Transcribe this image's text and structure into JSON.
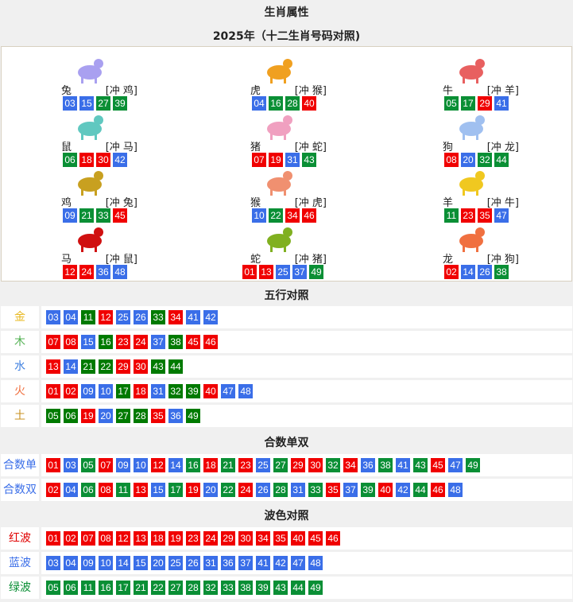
{
  "title": "生肖属性",
  "subtitle": "2025年（十二生肖号码对照)",
  "colors": {
    "red": "#f00000",
    "blue": "#3a6ee8",
    "green": "#0a8f35",
    "green_dark": "#007a00"
  },
  "waves": {
    "red": [
      "01",
      "02",
      "07",
      "08",
      "12",
      "13",
      "18",
      "19",
      "23",
      "24",
      "29",
      "30",
      "34",
      "35",
      "40",
      "45",
      "46"
    ],
    "blue": [
      "03",
      "04",
      "09",
      "10",
      "14",
      "15",
      "20",
      "25",
      "26",
      "31",
      "36",
      "37",
      "41",
      "42",
      "47",
      "48"
    ],
    "green": [
      "05",
      "06",
      "11",
      "16",
      "17",
      "21",
      "22",
      "27",
      "28",
      "32",
      "33",
      "38",
      "39",
      "43",
      "44",
      "49"
    ]
  },
  "zodiac": [
    {
      "name": "兔",
      "clash": "[冲 鸡]",
      "icon": "rabbit-icon",
      "color": "#a9a0f0",
      "nums": [
        "03",
        "15",
        "27",
        "39"
      ]
    },
    {
      "name": "虎",
      "clash": "[冲 猴]",
      "icon": "tiger-icon",
      "color": "#f0a020",
      "nums": [
        "04",
        "16",
        "28",
        "40"
      ]
    },
    {
      "name": "牛",
      "clash": "[冲 羊]",
      "icon": "ox-icon",
      "color": "#e86060",
      "nums": [
        "05",
        "17",
        "29",
        "41"
      ]
    },
    {
      "name": "鼠",
      "clash": "[冲 马]",
      "icon": "rat-icon",
      "color": "#60c8c0",
      "nums": [
        "06",
        "18",
        "30",
        "42"
      ]
    },
    {
      "name": "猪",
      "clash": "[冲 蛇]",
      "icon": "pig-icon",
      "color": "#f0a0c0",
      "nums": [
        "07",
        "19",
        "31",
        "43"
      ]
    },
    {
      "name": "狗",
      "clash": "[冲 龙]",
      "icon": "dog-icon",
      "color": "#a0c0f0",
      "nums": [
        "08",
        "20",
        "32",
        "44"
      ]
    },
    {
      "name": "鸡",
      "clash": "[冲 兔]",
      "icon": "rooster-icon",
      "color": "#c8a020",
      "nums": [
        "09",
        "21",
        "33",
        "45"
      ]
    },
    {
      "name": "猴",
      "clash": "[冲 虎]",
      "icon": "monkey-icon",
      "color": "#f09070",
      "nums": [
        "10",
        "22",
        "34",
        "46"
      ]
    },
    {
      "name": "羊",
      "clash": "[冲 牛]",
      "icon": "goat-icon",
      "color": "#f0c820",
      "nums": [
        "11",
        "23",
        "35",
        "47"
      ]
    },
    {
      "name": "马",
      "clash": "[冲 鼠]",
      "icon": "horse-icon",
      "color": "#d01010",
      "nums": [
        "12",
        "24",
        "36",
        "48"
      ]
    },
    {
      "name": "蛇",
      "clash": "[冲 猪]",
      "icon": "snake-icon",
      "color": "#80b020",
      "nums": [
        "01",
        "13",
        "25",
        "37",
        "49"
      ]
    },
    {
      "name": "龙",
      "clash": "[冲 狗]",
      "icon": "dragon-icon",
      "color": "#f07040",
      "nums": [
        "02",
        "14",
        "26",
        "38"
      ]
    }
  ],
  "wuxing": {
    "title": "五行对照",
    "rows": [
      {
        "label": "金",
        "color": "#e8b820",
        "nums": [
          "03",
          "04",
          "11",
          "12",
          "25",
          "26",
          "33",
          "34",
          "41",
          "42"
        ]
      },
      {
        "label": "木",
        "color": "#50b050",
        "nums": [
          "07",
          "08",
          "15",
          "16",
          "23",
          "24",
          "37",
          "38",
          "45",
          "46"
        ]
      },
      {
        "label": "水",
        "color": "#4080e0",
        "nums": [
          "13",
          "14",
          "21",
          "22",
          "29",
          "30",
          "43",
          "44"
        ]
      },
      {
        "label": "火",
        "color": "#f07040",
        "nums": [
          "01",
          "02",
          "09",
          "10",
          "17",
          "18",
          "31",
          "32",
          "39",
          "40",
          "47",
          "48"
        ]
      },
      {
        "label": "土",
        "color": "#c89020",
        "nums": [
          "05",
          "06",
          "19",
          "20",
          "27",
          "28",
          "35",
          "36",
          "49"
        ]
      }
    ]
  },
  "heshu": {
    "title": "合数单双",
    "rows": [
      {
        "label": "合数单",
        "color": "#3a6ee8",
        "nums": [
          "01",
          "03",
          "05",
          "07",
          "09",
          "10",
          "12",
          "14",
          "16",
          "18",
          "21",
          "23",
          "25",
          "27",
          "29",
          "30",
          "32",
          "34",
          "36",
          "38",
          "41",
          "43",
          "45",
          "47",
          "49"
        ]
      },
      {
        "label": "合数双",
        "color": "#3a6ee8",
        "nums": [
          "02",
          "04",
          "06",
          "08",
          "11",
          "13",
          "15",
          "17",
          "19",
          "20",
          "22",
          "24",
          "26",
          "28",
          "31",
          "33",
          "35",
          "37",
          "39",
          "40",
          "42",
          "44",
          "46",
          "48"
        ]
      }
    ]
  },
  "bose": {
    "title": "波色对照",
    "rows": [
      {
        "label": "红波",
        "color": "#e00000",
        "nums": [
          "01",
          "02",
          "07",
          "08",
          "12",
          "13",
          "18",
          "19",
          "23",
          "24",
          "29",
          "30",
          "34",
          "35",
          "40",
          "45",
          "46"
        ]
      },
      {
        "label": "蓝波",
        "color": "#3a6ee8",
        "nums": [
          "03",
          "04",
          "09",
          "10",
          "14",
          "15",
          "20",
          "25",
          "26",
          "31",
          "36",
          "37",
          "41",
          "42",
          "47",
          "48"
        ]
      },
      {
        "label": "绿波",
        "color": "#0a8f35",
        "nums": [
          "05",
          "06",
          "11",
          "16",
          "17",
          "21",
          "22",
          "27",
          "28",
          "32",
          "33",
          "38",
          "39",
          "43",
          "44",
          "49"
        ]
      }
    ]
  }
}
